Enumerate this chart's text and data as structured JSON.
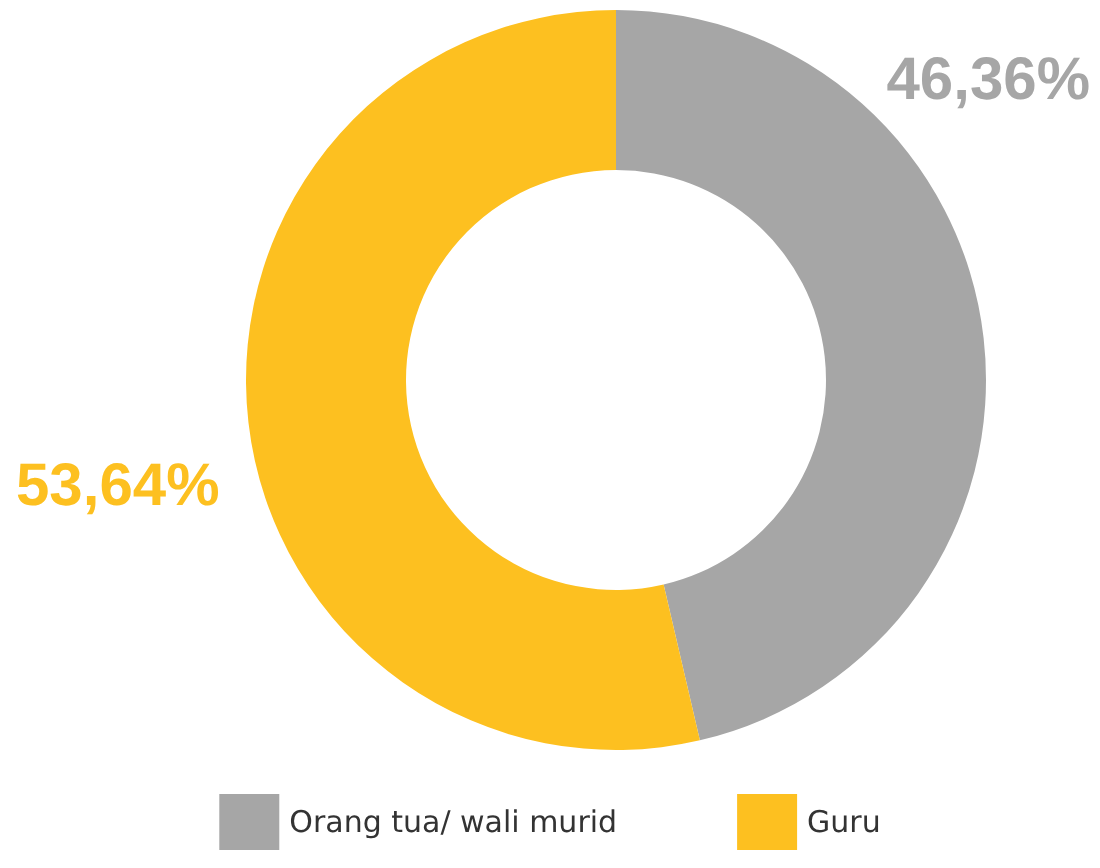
{
  "chart_data": {
    "type": "donut",
    "categories": [
      "Orang tua/ wali murid",
      "Guru"
    ],
    "values": [
      46.36,
      53.64
    ],
    "colors": [
      "#a6a6a6",
      "#fdc020"
    ],
    "value_labels": [
      "46,36%",
      "53,64%"
    ],
    "legend": "bottom"
  }
}
